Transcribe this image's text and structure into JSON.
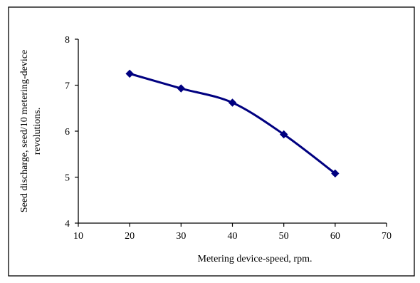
{
  "chart_data": {
    "type": "line",
    "xlabel": "Metering device-speed, rpm.",
    "ylabel_lines": [
      "Seed discharge, seed/10 metering-device",
      "revolutions."
    ],
    "xlim": [
      10,
      70
    ],
    "ylim": [
      4,
      8
    ],
    "x_ticks": [
      10,
      20,
      30,
      40,
      50,
      60,
      70
    ],
    "y_ticks": [
      4,
      5,
      6,
      7,
      8
    ],
    "grid": false,
    "legend": "none",
    "series": [
      {
        "x": [
          20,
          30,
          40,
          50,
          60
        ],
        "values": [
          7.25,
          6.93,
          6.62,
          5.93,
          5.08
        ],
        "color": "#000080",
        "marker": "diamond"
      }
    ]
  }
}
